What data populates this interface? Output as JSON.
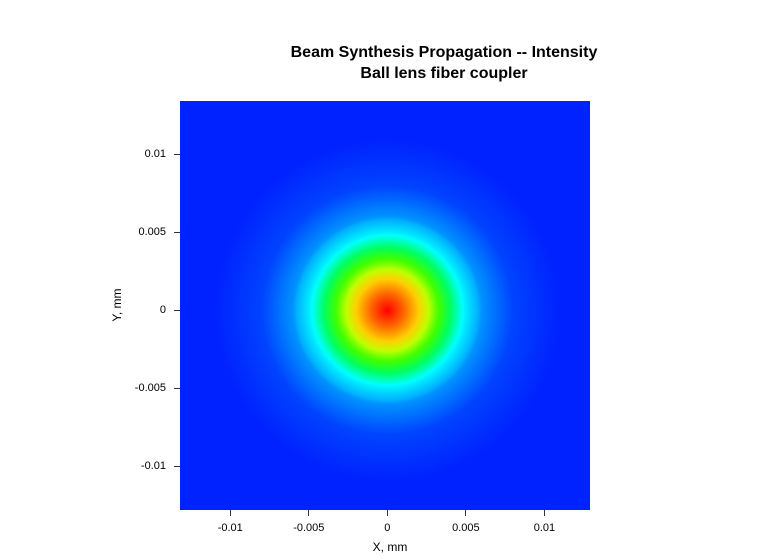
{
  "chart_data": {
    "type": "heatmap",
    "title": "Beam Synthesis Propagation -- Intensity",
    "subtitle": "Ball lens fiber coupler",
    "xlabel": "X, mm",
    "ylabel": "Y, mm",
    "xlim": [
      -0.0132,
      0.0129
    ],
    "ylim": [
      -0.0128,
      0.0134
    ],
    "x_ticks": [
      {
        "value": -0.01,
        "label": "-0.01"
      },
      {
        "value": -0.005,
        "label": "-0.005"
      },
      {
        "value": 0,
        "label": "0"
      },
      {
        "value": 0.005,
        "label": "0.005"
      },
      {
        "value": 0.01,
        "label": "0.01"
      }
    ],
    "y_ticks": [
      {
        "value": 0.01,
        "label": "0.01"
      },
      {
        "value": 0.005,
        "label": "0.005"
      },
      {
        "value": 0,
        "label": "0"
      },
      {
        "value": -0.005,
        "label": "-0.005"
      },
      {
        "value": -0.01,
        "label": "-0.01"
      }
    ],
    "beam": {
      "center_x": 0.0,
      "center_y": 0.0,
      "peak_relative_intensity": 1.0,
      "radial_intensity_profile": [
        {
          "r_mm": 0.0,
          "relative_intensity": 1.0
        },
        {
          "r_mm": 0.002,
          "relative_intensity": 0.75
        },
        {
          "r_mm": 0.003,
          "relative_intensity": 0.55
        },
        {
          "r_mm": 0.004,
          "relative_intensity": 0.38
        },
        {
          "r_mm": 0.005,
          "relative_intensity": 0.22
        },
        {
          "r_mm": 0.006,
          "relative_intensity": 0.1
        },
        {
          "r_mm": 0.008,
          "relative_intensity": 0.03
        },
        {
          "r_mm": 0.011,
          "relative_intensity": 0.0
        }
      ]
    },
    "colormap": [
      "#0022ff",
      "#00b0ff",
      "#00ffff",
      "#00ff60",
      "#40ff00",
      "#c0ff00",
      "#ffd000",
      "#ff6000",
      "#ff0000"
    ],
    "legend": false,
    "grid": false
  }
}
